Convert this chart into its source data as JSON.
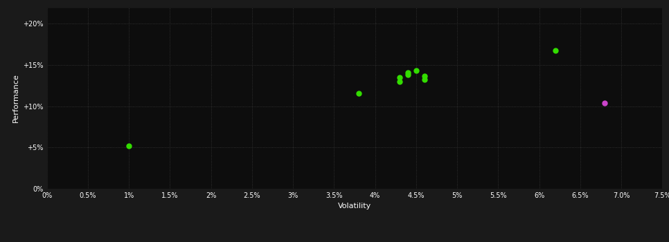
{
  "background_color": "#1a1a1a",
  "plot_bg_color": "#0d0d0d",
  "grid_color": "#3a3a3a",
  "xlabel": "Volatility",
  "ylabel": "Performance",
  "xlim": [
    0.0,
    0.075
  ],
  "ylim": [
    0.0,
    0.22
  ],
  "x_ticks": [
    0.0,
    0.005,
    0.01,
    0.015,
    0.02,
    0.025,
    0.03,
    0.035,
    0.04,
    0.045,
    0.05,
    0.055,
    0.06,
    0.065,
    0.07,
    0.075
  ],
  "y_ticks": [
    0.0,
    0.05,
    0.1,
    0.15,
    0.2
  ],
  "green_points": [
    [
      0.01,
      0.052
    ],
    [
      0.038,
      0.116
    ],
    [
      0.043,
      0.13
    ],
    [
      0.043,
      0.135
    ],
    [
      0.044,
      0.138
    ],
    [
      0.044,
      0.141
    ],
    [
      0.045,
      0.143
    ],
    [
      0.046,
      0.137
    ],
    [
      0.046,
      0.132
    ],
    [
      0.062,
      0.168
    ]
  ],
  "magenta_points": [
    [
      0.068,
      0.104
    ]
  ],
  "green_color": "#33dd00",
  "magenta_color": "#cc44cc",
  "point_size": 25,
  "tick_fontsize": 7,
  "label_fontsize": 8
}
